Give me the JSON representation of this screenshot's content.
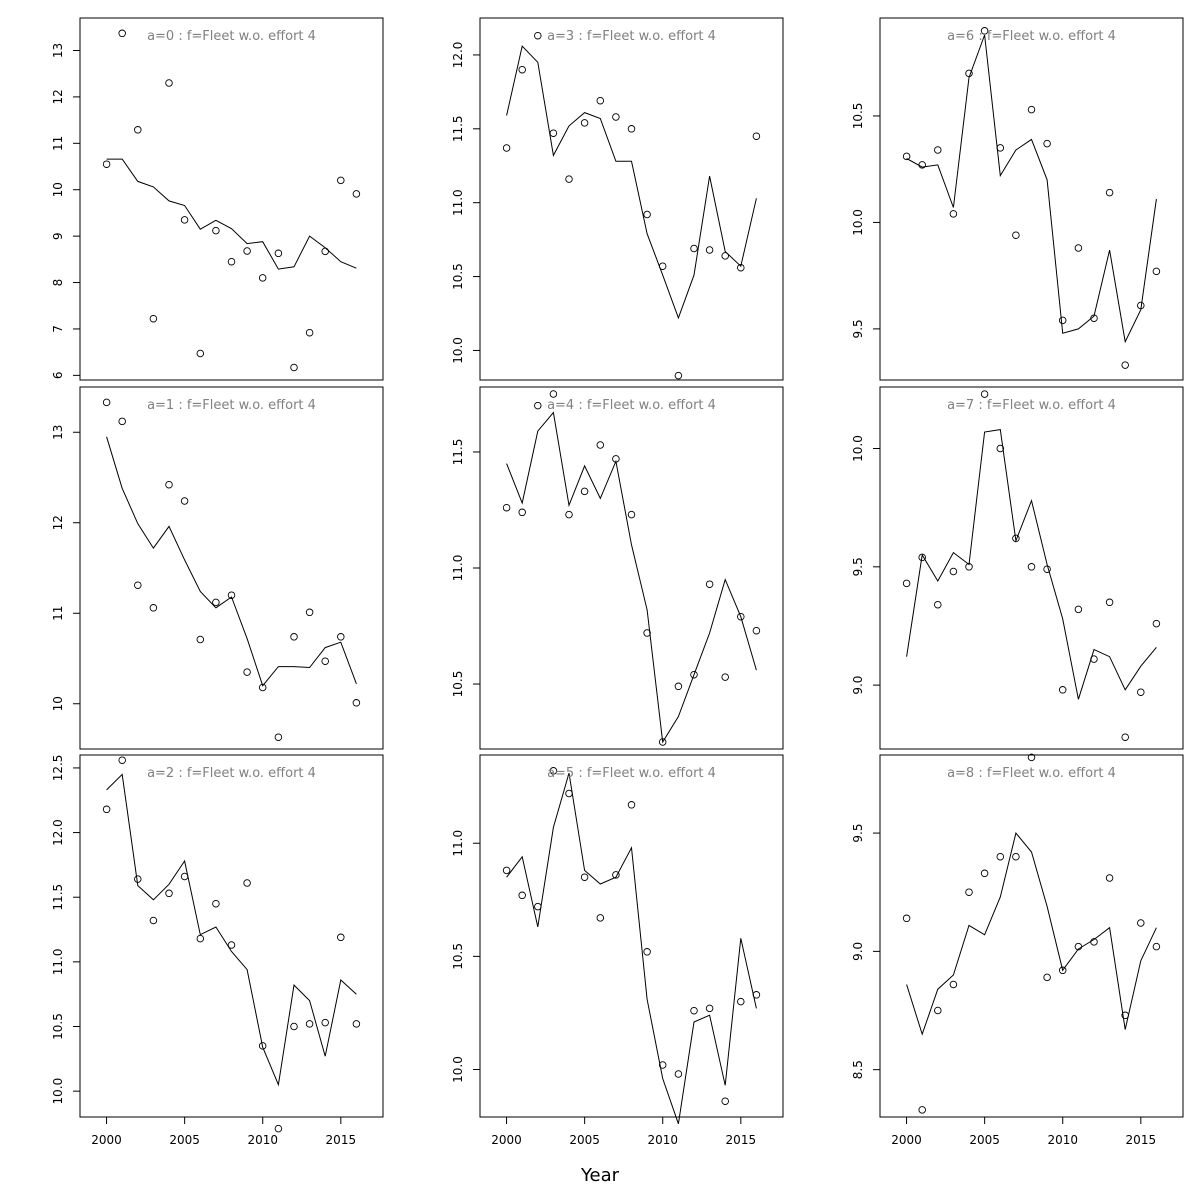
{
  "chart_data": {
    "type": "scatter",
    "layout": "3x3 grid, panels ordered column-wise",
    "xlabel": "Year",
    "x_ticks": [
      2000,
      2005,
      2010,
      2015
    ],
    "x_range": [
      1998.3,
      2017.7
    ],
    "panels": [
      {
        "title": "a=0  :  f=Fleet w.o. effort 4",
        "y_ticks": [
          6,
          7,
          8,
          9,
          10,
          11,
          12,
          13
        ],
        "ylim": [
          5.9,
          13.7
        ],
        "x": [
          2000,
          2001,
          2002,
          2003,
          2004,
          2005,
          2006,
          2007,
          2008,
          2009,
          2010,
          2011,
          2012,
          2013,
          2014,
          2015,
          2016
        ],
        "observed": [
          10.55,
          13.37,
          11.29,
          7.22,
          12.3,
          9.35,
          6.47,
          9.12,
          8.45,
          8.68,
          8.1,
          8.63,
          6.17,
          6.92,
          8.67,
          10.2,
          9.91
        ],
        "fitted": [
          10.66,
          10.66,
          10.18,
          10.06,
          9.76,
          9.66,
          9.15,
          9.34,
          9.16,
          8.84,
          8.88,
          8.29,
          8.34,
          9.0,
          8.75,
          8.45,
          8.31
        ]
      },
      {
        "title": "a=1  :  f=Fleet w.o. effort 4",
        "y_ticks": [
          10,
          11,
          12,
          13
        ],
        "ylim": [
          9.5,
          13.5
        ],
        "x": [
          2000,
          2001,
          2002,
          2003,
          2004,
          2005,
          2006,
          2007,
          2008,
          2009,
          2010,
          2011,
          2012,
          2013,
          2014,
          2015,
          2016
        ],
        "observed": [
          13.33,
          13.12,
          11.31,
          11.06,
          12.42,
          12.24,
          10.71,
          11.12,
          11.2,
          10.35,
          10.18,
          9.63,
          10.74,
          11.01,
          10.47,
          10.74,
          10.01
        ],
        "fitted": [
          12.95,
          12.38,
          11.99,
          11.72,
          11.96,
          11.59,
          11.24,
          11.06,
          11.18,
          10.72,
          10.2,
          10.41,
          10.41,
          10.4,
          10.62,
          10.68,
          10.22
        ]
      },
      {
        "title": "a=2  :  f=Fleet w.o. effort 4",
        "y_ticks": [
          10.0,
          10.5,
          11.0,
          11.5,
          12.0,
          12.5
        ],
        "ylim": [
          9.8,
          12.6
        ],
        "x": [
          2000,
          2001,
          2002,
          2003,
          2004,
          2005,
          2006,
          2007,
          2008,
          2009,
          2010,
          2011,
          2012,
          2013,
          2014,
          2015,
          2016
        ],
        "observed": [
          12.18,
          12.56,
          11.64,
          11.32,
          11.53,
          11.66,
          11.18,
          11.45,
          11.13,
          11.61,
          10.35,
          9.71,
          10.5,
          10.52,
          10.53,
          11.19,
          10.52
        ],
        "fitted": [
          12.33,
          12.45,
          11.59,
          11.48,
          11.6,
          11.78,
          11.21,
          11.27,
          11.08,
          10.94,
          10.34,
          10.05,
          10.82,
          10.7,
          10.27,
          10.86,
          10.75
        ]
      },
      {
        "title": "a=3  :  f=Fleet w.o. effort 4",
        "y_ticks": [
          10.0,
          10.5,
          11.0,
          11.5,
          12.0
        ],
        "ylim": [
          9.8,
          12.25
        ],
        "x": [
          2000,
          2001,
          2002,
          2003,
          2004,
          2005,
          2006,
          2007,
          2008,
          2009,
          2010,
          2011,
          2012,
          2013,
          2014,
          2015,
          2016
        ],
        "observed": [
          11.37,
          11.9,
          12.13,
          11.47,
          11.16,
          11.54,
          11.69,
          11.58,
          11.5,
          10.92,
          10.57,
          9.83,
          10.69,
          10.68,
          10.64,
          10.56,
          11.45
        ],
        "fitted": [
          11.59,
          12.06,
          11.95,
          11.32,
          11.52,
          11.61,
          11.57,
          11.28,
          11.28,
          10.79,
          10.51,
          10.22,
          10.51,
          11.18,
          10.67,
          10.57,
          11.03
        ]
      },
      {
        "title": "a=4  :  f=Fleet w.o. effort 4",
        "y_ticks": [
          10.5,
          11.0,
          11.5
        ],
        "ylim": [
          10.22,
          11.78
        ],
        "x": [
          2000,
          2001,
          2002,
          2003,
          2004,
          2005,
          2006,
          2007,
          2008,
          2009,
          2010,
          2011,
          2012,
          2013,
          2014,
          2015,
          2016
        ],
        "observed": [
          11.26,
          11.24,
          11.7,
          11.75,
          11.23,
          11.33,
          11.53,
          11.47,
          11.23,
          10.72,
          10.25,
          10.49,
          10.54,
          10.93,
          10.53,
          10.79,
          10.73
        ],
        "fitted": [
          11.45,
          11.28,
          11.59,
          11.67,
          11.27,
          11.44,
          11.3,
          11.46,
          11.1,
          10.82,
          10.25,
          10.36,
          10.54,
          10.72,
          10.95,
          10.79,
          10.56
        ]
      },
      {
        "title": "a=5  :  f=Fleet w.o. effort 4",
        "y_ticks": [
          10.0,
          10.5,
          11.0
        ],
        "ylim": [
          9.79,
          11.39
        ],
        "x": [
          2000,
          2001,
          2002,
          2003,
          2004,
          2005,
          2006,
          2007,
          2008,
          2009,
          2010,
          2011,
          2012,
          2013,
          2014,
          2015,
          2016
        ],
        "observed": [
          10.88,
          10.77,
          10.72,
          11.32,
          11.22,
          10.85,
          10.67,
          10.86,
          11.17,
          10.52,
          10.02,
          9.98,
          10.26,
          10.27,
          9.86,
          10.3,
          10.33
        ],
        "fitted": [
          10.85,
          10.94,
          10.63,
          11.07,
          11.31,
          10.88,
          10.82,
          10.85,
          10.98,
          10.31,
          9.96,
          9.76,
          10.21,
          10.24,
          9.93,
          10.58,
          10.27
        ]
      },
      {
        "title": "a=6  :  f=Fleet w.o. effort 4",
        "y_ticks": [
          9.5,
          10.0,
          10.5
        ],
        "ylim": [
          9.26,
          10.96
        ],
        "x": [
          2000,
          2001,
          2002,
          2003,
          2004,
          2005,
          2006,
          2007,
          2008,
          2009,
          2010,
          2011,
          2012,
          2013,
          2014,
          2015,
          2016
        ],
        "observed": [
          10.31,
          10.27,
          10.34,
          10.04,
          10.7,
          10.9,
          10.35,
          9.94,
          10.53,
          10.37,
          9.54,
          9.88,
          9.55,
          10.14,
          9.33,
          9.61,
          9.77
        ],
        "fitted": [
          10.3,
          10.26,
          10.27,
          10.07,
          10.68,
          10.88,
          10.22,
          10.34,
          10.39,
          10.2,
          9.48,
          9.5,
          9.56,
          9.87,
          9.44,
          9.59,
          10.11
        ]
      },
      {
        "title": "a=7  :  f=Fleet w.o. effort 4",
        "y_ticks": [
          9.0,
          9.5,
          10.0
        ],
        "ylim": [
          8.73,
          10.26
        ],
        "x": [
          2000,
          2001,
          2002,
          2003,
          2004,
          2005,
          2006,
          2007,
          2008,
          2009,
          2010,
          2011,
          2012,
          2013,
          2014,
          2015,
          2016
        ],
        "observed": [
          9.43,
          9.54,
          9.34,
          9.48,
          9.5,
          10.23,
          10.0,
          9.62,
          9.5,
          9.49,
          8.98,
          9.32,
          9.11,
          9.35,
          8.78,
          8.97,
          9.26
        ],
        "fitted": [
          9.12,
          9.55,
          9.44,
          9.56,
          9.51,
          10.07,
          10.08,
          9.61,
          9.78,
          9.51,
          9.28,
          8.94,
          9.15,
          9.12,
          8.98,
          9.08,
          9.16
        ]
      },
      {
        "title": "a=8  :  f=Fleet w.o. effort 4",
        "y_ticks": [
          8.5,
          9.0,
          9.5
        ],
        "ylim": [
          8.3,
          9.83
        ],
        "x": [
          2000,
          2001,
          2002,
          2003,
          2004,
          2005,
          2006,
          2007,
          2008,
          2009,
          2010,
          2011,
          2012,
          2013,
          2014,
          2015,
          2016
        ],
        "observed": [
          9.14,
          8.33,
          8.75,
          8.86,
          9.25,
          9.33,
          9.4,
          9.4,
          9.82,
          8.89,
          8.92,
          9.02,
          9.04,
          9.31,
          8.73,
          9.12,
          9.02
        ],
        "fitted": [
          8.86,
          8.65,
          8.84,
          8.9,
          9.11,
          9.07,
          9.23,
          9.5,
          9.42,
          9.19,
          8.92,
          9.01,
          9.05,
          9.1,
          8.67,
          8.96,
          9.1
        ]
      }
    ]
  }
}
